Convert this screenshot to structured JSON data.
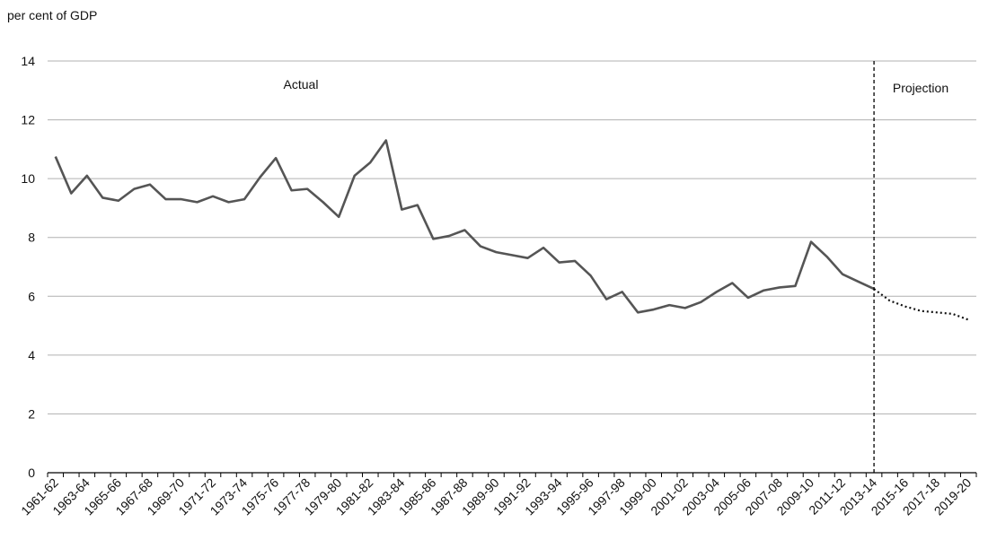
{
  "chart_data": {
    "type": "line",
    "y_axis_label": "per cent of GDP",
    "annotations": [
      "Actual",
      "Projection"
    ],
    "categories": [
      "1961-62",
      null,
      "1963-64",
      null,
      "1965-66",
      null,
      "1967-68",
      null,
      "1969-70",
      null,
      "1971-72",
      null,
      "1973-74",
      null,
      "1975-76",
      null,
      "1977-78",
      null,
      "1979-80",
      null,
      "1981-82",
      null,
      "1983-84",
      null,
      "1985-86",
      null,
      "1987-88",
      null,
      "1989-90",
      null,
      "1991-92",
      null,
      "1993-94",
      null,
      "1995-96",
      null,
      "1997-98",
      null,
      "1999-00",
      null,
      "2001-02",
      null,
      "2003-04",
      null,
      "2005-06",
      null,
      "2007-08",
      null,
      "2009-10",
      null,
      "2011-12",
      null,
      "2013-14",
      null,
      "2015-16",
      null,
      "2017-18",
      null,
      "2019-20"
    ],
    "series": [
      {
        "color": "#555555",
        "style": "solid",
        "values": [
          10.75,
          9.5,
          10.1,
          9.35,
          9.25,
          9.65,
          9.8,
          9.3,
          9.3,
          9.2,
          9.4,
          9.2,
          9.3,
          10.05,
          10.7,
          9.6,
          9.65,
          9.2,
          8.7,
          10.1,
          10.55,
          11.3,
          8.95,
          9.1,
          7.95,
          8.05,
          8.25,
          7.7,
          7.5,
          7.4,
          7.3,
          7.65,
          7.15,
          7.2,
          6.7,
          5.9,
          6.15,
          5.45,
          5.55,
          5.7,
          5.6,
          5.8,
          6.15,
          6.45,
          5.95,
          6.2,
          6.3,
          6.35,
          7.85,
          7.35,
          6.75,
          6.5,
          6.25,
          null,
          null,
          null,
          null,
          null,
          null
        ]
      },
      {
        "color": "#111111",
        "style": "dotted",
        "values": [
          null,
          null,
          null,
          null,
          null,
          null,
          null,
          null,
          null,
          null,
          null,
          null,
          null,
          null,
          null,
          null,
          null,
          null,
          null,
          null,
          null,
          null,
          null,
          null,
          null,
          null,
          null,
          null,
          null,
          null,
          null,
          null,
          null,
          null,
          null,
          null,
          null,
          null,
          null,
          null,
          null,
          null,
          null,
          null,
          null,
          null,
          null,
          null,
          null,
          null,
          null,
          null,
          6.25,
          5.85,
          5.65,
          5.5,
          5.45,
          5.4,
          5.2
        ]
      }
    ],
    "ylim": [
      0,
      14
    ],
    "yticks": [
      0,
      2,
      4,
      6,
      8,
      10,
      12,
      14
    ],
    "grid": true
  }
}
